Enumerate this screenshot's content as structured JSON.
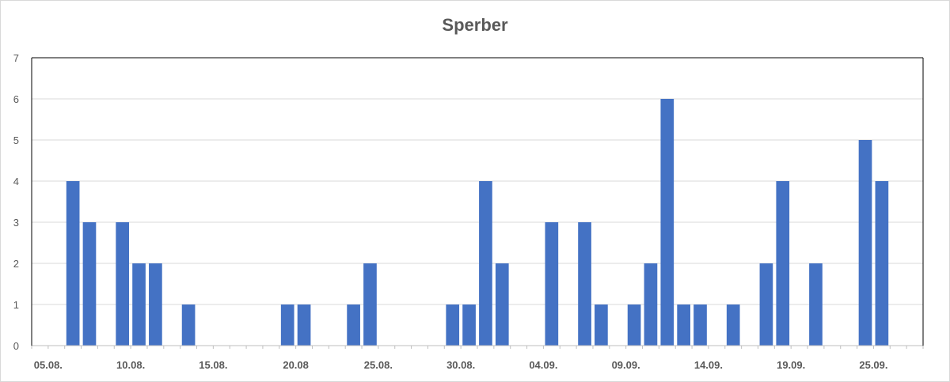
{
  "chart_data": {
    "type": "bar",
    "title": "Sperber",
    "xlabel": "",
    "ylabel": "",
    "ylim": [
      0,
      7
    ],
    "y_ticks": [
      0,
      1,
      2,
      3,
      4,
      5,
      6,
      7
    ],
    "x_range": [
      "05.08.",
      "25.09.+2d"
    ],
    "x_tick_labels": [
      "05.08.",
      "10.08.",
      "15.08.",
      "20.08",
      "25.08.",
      "30.08.",
      "04.09.",
      "09.09.",
      "14.09.",
      "19.09.",
      "25.09."
    ],
    "grid": true,
    "legend": "none",
    "bar_color": "#4472c4",
    "dates": [
      "07.08.",
      "08.08.",
      "10.08.",
      "11.08.",
      "12.08.",
      "14.08.",
      "20.08.",
      "21.08.",
      "24.08.",
      "25.08.",
      "30.08.",
      "31.08.",
      "01.09.",
      "02.09.",
      "05.09.",
      "07.09.",
      "08.09.",
      "10.09.",
      "11.09.",
      "12.09.",
      "13.09.",
      "14.09.",
      "16.09.",
      "18.09.",
      "19.09.",
      "21.09.",
      "24.09.",
      "25.09."
    ],
    "values": [
      4,
      3,
      3,
      2,
      2,
      1,
      1,
      1,
      1,
      2,
      1,
      1,
      4,
      2,
      3,
      3,
      1,
      1,
      2,
      6,
      1,
      1,
      1,
      2,
      4,
      2,
      5,
      4
    ]
  }
}
